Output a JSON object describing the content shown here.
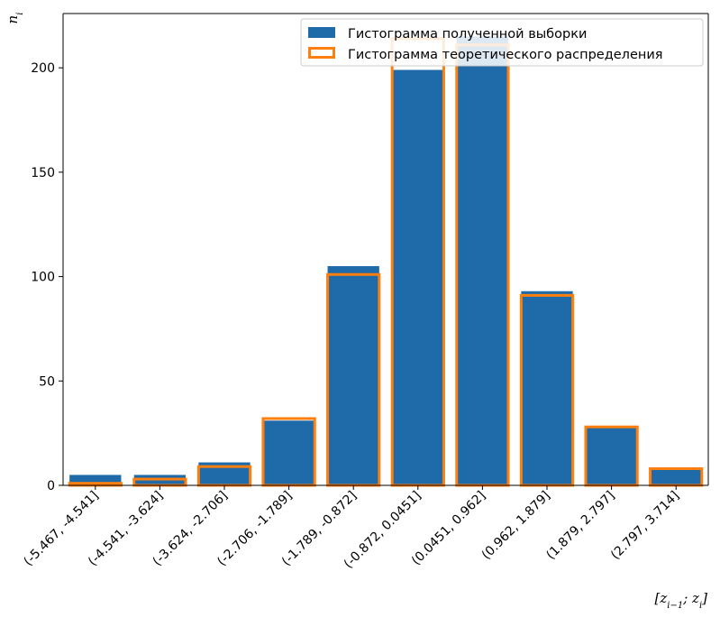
{
  "chart_data": {
    "type": "bar",
    "categories": [
      "(-5.467, -4.541]",
      "(-4.541, -3.624]",
      "(-3.624, -2.706]",
      "(-2.706, -1.789]",
      "(-1.789, -0.872]",
      "(-0.872, 0.0451]",
      "(0.0451, 0.962]",
      "(0.962, 1.879]",
      "(1.879, 2.797]",
      "(2.797, 3.714]"
    ],
    "series": [
      {
        "name": "Гистограмма полученной выборки",
        "values": [
          5,
          5,
          11,
          31,
          105,
          199,
          215,
          93,
          28,
          8
        ],
        "style": "filled"
      },
      {
        "name": "Гистограмма теоретического распределения",
        "values": [
          1,
          3,
          9,
          32,
          101,
          214,
          211,
          91,
          28,
          8
        ],
        "style": "outline"
      }
    ],
    "yticks": [
      0,
      50,
      100,
      150,
      200
    ],
    "ylim": [
      0,
      226
    ],
    "xlabel": "[z_{i−1}; z_i]",
    "ylabel": "n_i",
    "legend": "top-right",
    "grid": false,
    "colors": {
      "filled": "#1f6aa8",
      "outline": "#ff7f0e"
    }
  }
}
